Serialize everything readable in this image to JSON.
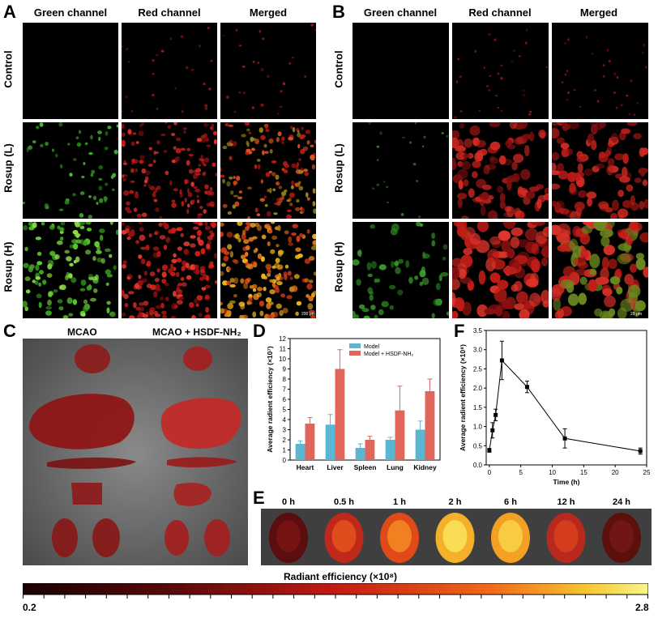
{
  "panel_letters": {
    "a": "A",
    "b": "B",
    "c": "C",
    "d": "D",
    "e": "E",
    "f": "F"
  },
  "columns": [
    "Green channel",
    "Red channel",
    "Merged"
  ],
  "rows": [
    "Control",
    "Rosup (L)",
    "Rosup (H)"
  ],
  "scale_a": "200 μm",
  "scale_b": "20 μm",
  "panel_c": {
    "left": "MCAO",
    "right": "MCAO + HSDF-NH₂"
  },
  "panel_e": {
    "times": [
      "0 h",
      "0.5 h",
      "1 h",
      "2 h",
      "6 h",
      "12 h",
      "24 h"
    ]
  },
  "colorbar": {
    "title": "Radiant efficiency (×10⁸)",
    "min": "0.2",
    "max": "2.8"
  },
  "colors": {
    "model": "#5bb6d3",
    "treated": "#e0655a",
    "black": "#000000"
  },
  "chart_data": [
    {
      "type": "bar",
      "ylabel": "Average radient efficiency (×10⁷)",
      "categories": [
        "Heart",
        "Liver",
        "Spleen",
        "Lung",
        "Kidney"
      ],
      "ylim": [
        0,
        12
      ],
      "yticks": [
        0,
        1,
        2,
        3,
        4,
        5,
        6,
        7,
        8,
        9,
        10,
        11,
        12
      ],
      "series": [
        {
          "name": "Model",
          "values": [
            1.6,
            3.5,
            1.2,
            2.0,
            3.0
          ],
          "errors": [
            0.3,
            1.0,
            0.4,
            0.25,
            0.85
          ]
        },
        {
          "name": "Model + HSDF-NH₂",
          "values": [
            3.6,
            9.0,
            2.0,
            4.9,
            6.8
          ],
          "errors": [
            0.6,
            1.9,
            0.35,
            2.4,
            1.2
          ]
        }
      ],
      "legend": "top-right"
    },
    {
      "type": "line",
      "xlabel": "Time (h)",
      "ylabel": "Average radient efficiency (×10⁸)",
      "x": [
        0,
        0.5,
        1,
        2,
        6,
        12,
        24
      ],
      "y": [
        0.38,
        0.9,
        1.3,
        2.72,
        2.03,
        0.69,
        0.36
      ],
      "errors": [
        0.05,
        0.2,
        0.15,
        0.5,
        0.15,
        0.25,
        0.08
      ],
      "xlim": [
        -0.5,
        25
      ],
      "ylim": [
        0,
        3.5
      ],
      "xticks": [
        0,
        5,
        10,
        15,
        20,
        25
      ],
      "yticks": [
        0.0,
        0.5,
        1.0,
        1.5,
        2.0,
        2.5,
        3.0,
        3.5
      ]
    }
  ]
}
